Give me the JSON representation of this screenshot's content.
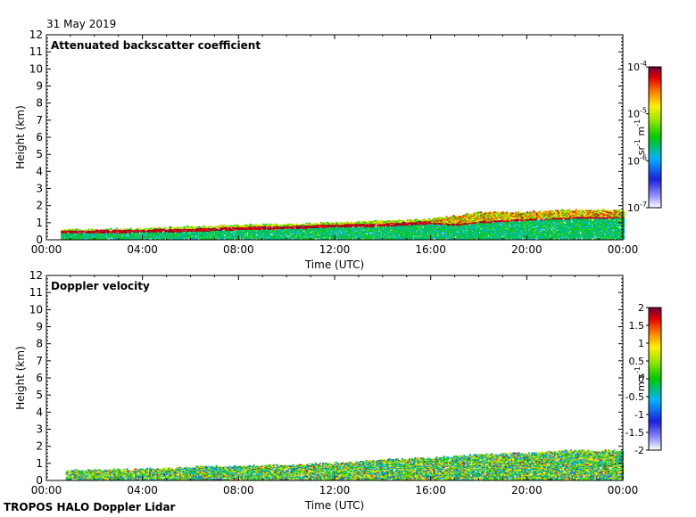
{
  "date": "31 May 2019",
  "footer": "TROPOS HALO Doppler Lidar",
  "colors": {
    "background": "#ffffff",
    "axis": "#000000"
  },
  "chart_data": [
    {
      "type": "heatmap",
      "title": "Attenuated backscatter coefficient",
      "xlabel": "Time (UTC)",
      "ylabel": "Height (km)",
      "x_ticks": [
        "00:00",
        "04:00",
        "08:00",
        "12:00",
        "16:00",
        "20:00",
        "00:00"
      ],
      "xlim_hours": [
        0,
        24
      ],
      "ylim": [
        0,
        12
      ],
      "y_ticks": [
        0,
        1,
        2,
        3,
        4,
        5,
        6,
        7,
        8,
        9,
        10,
        11,
        12
      ],
      "colorbar": {
        "scale": "log",
        "range": [
          1e-07,
          0.0001
        ],
        "unit_base": "sr",
        "unit_exp1": "-1",
        "unit_base2": "m",
        "unit_exp2": "-1",
        "labels": [
          {
            "base": "10",
            "exp": "-4",
            "value": -4
          },
          {
            "base": "10",
            "exp": "-5",
            "value": -5
          },
          {
            "base": "10",
            "exp": "-6",
            "value": -6
          },
          {
            "base": "10",
            "exp": "-7",
            "value": -7
          }
        ]
      },
      "layer_top_km": [
        {
          "t": 0.6,
          "h": 0.55
        },
        {
          "t": 2,
          "h": 0.6
        },
        {
          "t": 4,
          "h": 0.65
        },
        {
          "t": 6,
          "h": 0.75
        },
        {
          "t": 8,
          "h": 0.85
        },
        {
          "t": 10,
          "h": 0.9
        },
        {
          "t": 12,
          "h": 1.0
        },
        {
          "t": 14,
          "h": 1.1
        },
        {
          "t": 16,
          "h": 1.2
        },
        {
          "t": 18,
          "h": 1.6
        },
        {
          "t": 20,
          "h": 1.6
        },
        {
          "t": 22,
          "h": 1.75
        },
        {
          "t": 24,
          "h": 1.7
        }
      ],
      "cloud_base_km": [
        {
          "t": 1.5,
          "h": 0.45
        },
        {
          "t": 4,
          "h": 0.5
        },
        {
          "t": 6,
          "h": 0.55
        },
        {
          "t": 8,
          "h": 0.65
        },
        {
          "t": 10,
          "h": 0.7
        },
        {
          "t": 12,
          "h": 0.8
        },
        {
          "t": 14,
          "h": 0.85
        },
        {
          "t": 16,
          "h": 1.0
        },
        {
          "t": 17,
          "h": 0.9
        },
        {
          "t": 18,
          "h": 1.05
        },
        {
          "t": 20,
          "h": 1.2
        },
        {
          "t": 22,
          "h": 1.3
        },
        {
          "t": 24,
          "h": 1.35
        }
      ]
    },
    {
      "type": "heatmap",
      "title": "Doppler velocity",
      "xlabel": "Time (UTC)",
      "ylabel": "Height (km)",
      "x_ticks": [
        "00:00",
        "04:00",
        "08:00",
        "12:00",
        "16:00",
        "20:00",
        "00:00"
      ],
      "xlim_hours": [
        0,
        24
      ],
      "ylim": [
        0,
        12
      ],
      "y_ticks": [
        0,
        1,
        2,
        3,
        4,
        5,
        6,
        7,
        8,
        9,
        10,
        11,
        12
      ],
      "colorbar": {
        "scale": "linear",
        "range": [
          -2,
          2
        ],
        "unit_base": "m",
        "unit_exp1": "",
        "unit_base2": "s",
        "unit_exp2": "-1",
        "ticks": [
          "2",
          "1.5",
          "1",
          "0.5",
          "0",
          "-0.5",
          "-1",
          "-1.5",
          "-2"
        ]
      },
      "layer_top_km": [
        {
          "t": 0.8,
          "h": 0.55
        },
        {
          "t": 2,
          "h": 0.6
        },
        {
          "t": 4,
          "h": 0.65
        },
        {
          "t": 6,
          "h": 0.75
        },
        {
          "t": 8,
          "h": 0.85
        },
        {
          "t": 10,
          "h": 0.9
        },
        {
          "t": 12,
          "h": 1.0
        },
        {
          "t": 14,
          "h": 1.2
        },
        {
          "t": 16,
          "h": 1.3
        },
        {
          "t": 18,
          "h": 1.5
        },
        {
          "t": 20,
          "h": 1.6
        },
        {
          "t": 22,
          "h": 1.75
        },
        {
          "t": 24,
          "h": 1.7
        }
      ]
    }
  ]
}
